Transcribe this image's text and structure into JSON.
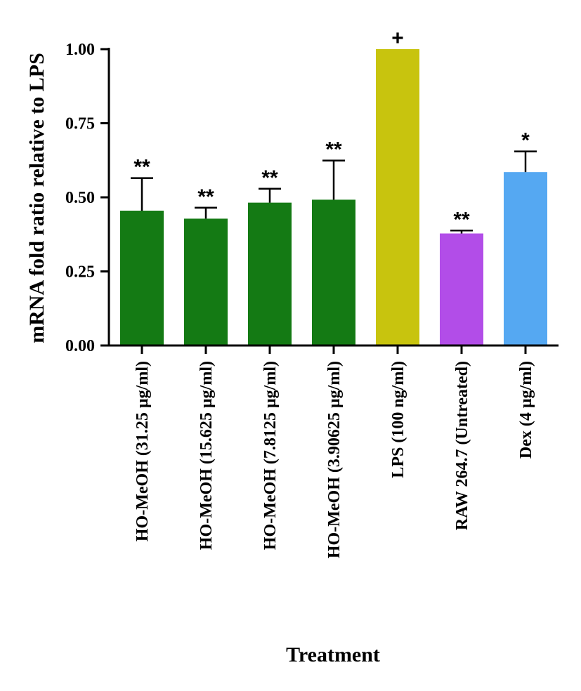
{
  "chart_data": {
    "type": "bar",
    "categories": [
      "HO-MeOH (31.25 µg/ml)",
      "HO-MeOH (15.625 µg/ml)",
      "HO-MeOH (7.8125 µg/ml)",
      "HO-MeOH (3.90625 µg/ml)",
      "LPS (100 ng/ml)",
      "RAW 264.7 (Untreated)",
      "Dex (4 µg/ml)"
    ],
    "values": [
      0.455,
      0.428,
      0.482,
      0.492,
      1.0,
      0.378,
      0.585
    ],
    "errors": [
      0.11,
      0.037,
      0.047,
      0.132,
      0.0,
      0.01,
      0.07
    ],
    "significance": [
      "**",
      "**",
      "**",
      "**",
      "+",
      "**",
      "*"
    ],
    "colors": [
      "#147a14",
      "#147a14",
      "#147a14",
      "#147a14",
      "#c8c40e",
      "#b24de8",
      "#55a8f2"
    ],
    "xlabel": "Treatment",
    "ylabel": "mRNA fold ratio relative to LPS",
    "ylim": [
      0,
      1.0
    ],
    "yticks": [
      0.0,
      0.25,
      0.5,
      0.75,
      1.0
    ],
    "ytick_labels": [
      "0.00",
      "0.25",
      "0.50",
      "0.75",
      "1.00"
    ],
    "grid": false,
    "legend": "none"
  }
}
